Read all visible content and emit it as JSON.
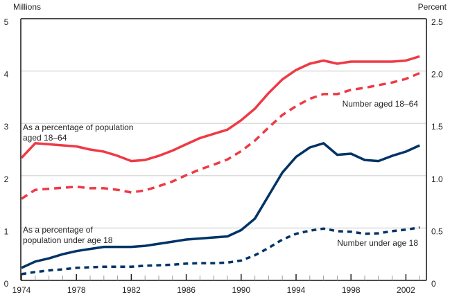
{
  "chart_data": {
    "type": "line",
    "title": "",
    "left_axis_label": "Millions",
    "right_axis_label": "Percent",
    "xlabel": "",
    "x": [
      1974,
      1975,
      1976,
      1977,
      1978,
      1979,
      1980,
      1981,
      1982,
      1983,
      1984,
      1985,
      1986,
      1987,
      1988,
      1989,
      1990,
      1991,
      1992,
      1993,
      1994,
      1995,
      1996,
      1997,
      1998,
      1999,
      2000,
      2001,
      2002,
      2003
    ],
    "x_tick_labels": [
      "1974",
      "1978",
      "1982",
      "1986",
      "1990",
      "1994",
      "1998",
      "2002"
    ],
    "left_ylim": [
      0,
      5
    ],
    "left_y_ticks": [
      "0",
      "1",
      "2",
      "3",
      "4",
      "5"
    ],
    "right_ylim": [
      0,
      2.5
    ],
    "right_y_ticks": [
      "0",
      "0.5",
      "1.0",
      "1.5",
      "2.0",
      "2.5"
    ],
    "grid": true,
    "colors": {
      "red": "#ee3a45",
      "navy": "#003366",
      "axis": "#4d4d4d",
      "grid": "#dcdcdc"
    },
    "series": [
      {
        "name": "As a percentage of population aged 18–64",
        "axis": "right",
        "style": "solid",
        "color": "#ee3a45",
        "values": [
          1.17,
          1.31,
          1.3,
          1.29,
          1.28,
          1.25,
          1.23,
          1.19,
          1.14,
          1.15,
          1.19,
          1.24,
          1.3,
          1.36,
          1.4,
          1.44,
          1.53,
          1.64,
          1.79,
          1.92,
          2.01,
          2.07,
          2.1,
          2.07,
          2.09,
          2.09,
          2.09,
          2.09,
          2.1,
          2.14
        ]
      },
      {
        "name": "Number aged 18–64",
        "axis": "left",
        "style": "dashed",
        "color": "#ee3a45",
        "values": [
          1.56,
          1.73,
          1.75,
          1.77,
          1.79,
          1.76,
          1.76,
          1.73,
          1.68,
          1.72,
          1.8,
          1.89,
          2.01,
          2.12,
          2.21,
          2.31,
          2.47,
          2.67,
          2.92,
          3.16,
          3.33,
          3.47,
          3.56,
          3.56,
          3.64,
          3.68,
          3.73,
          3.78,
          3.85,
          3.96
        ]
      },
      {
        "name": "As a percentage of population under age 18",
        "axis": "right",
        "style": "solid",
        "color": "#003366",
        "values": [
          0.12,
          0.18,
          0.21,
          0.25,
          0.28,
          0.3,
          0.32,
          0.32,
          0.32,
          0.33,
          0.35,
          0.37,
          0.39,
          0.4,
          0.41,
          0.42,
          0.48,
          0.59,
          0.81,
          1.03,
          1.18,
          1.27,
          1.31,
          1.2,
          1.21,
          1.15,
          1.14,
          1.19,
          1.23,
          1.29
        ]
      },
      {
        "name": "Number under age 18",
        "axis": "left",
        "style": "dashed",
        "color": "#003366",
        "values": [
          0.12,
          0.16,
          0.19,
          0.21,
          0.24,
          0.25,
          0.26,
          0.26,
          0.26,
          0.28,
          0.29,
          0.3,
          0.32,
          0.33,
          0.33,
          0.34,
          0.38,
          0.48,
          0.62,
          0.78,
          0.89,
          0.95,
          0.99,
          0.94,
          0.93,
          0.89,
          0.9,
          0.94,
          0.97,
          1.01
        ]
      }
    ],
    "annotations": [
      {
        "id": "pct1864",
        "lines": [
          "As a percentage of population",
          "aged 18–64"
        ]
      },
      {
        "id": "num1864",
        "lines": [
          "Number aged 18–64"
        ]
      },
      {
        "id": "pct18",
        "lines": [
          "As a percentage of",
          "population under age 18"
        ]
      },
      {
        "id": "num18",
        "lines": [
          "Number under age 18"
        ]
      }
    ]
  }
}
